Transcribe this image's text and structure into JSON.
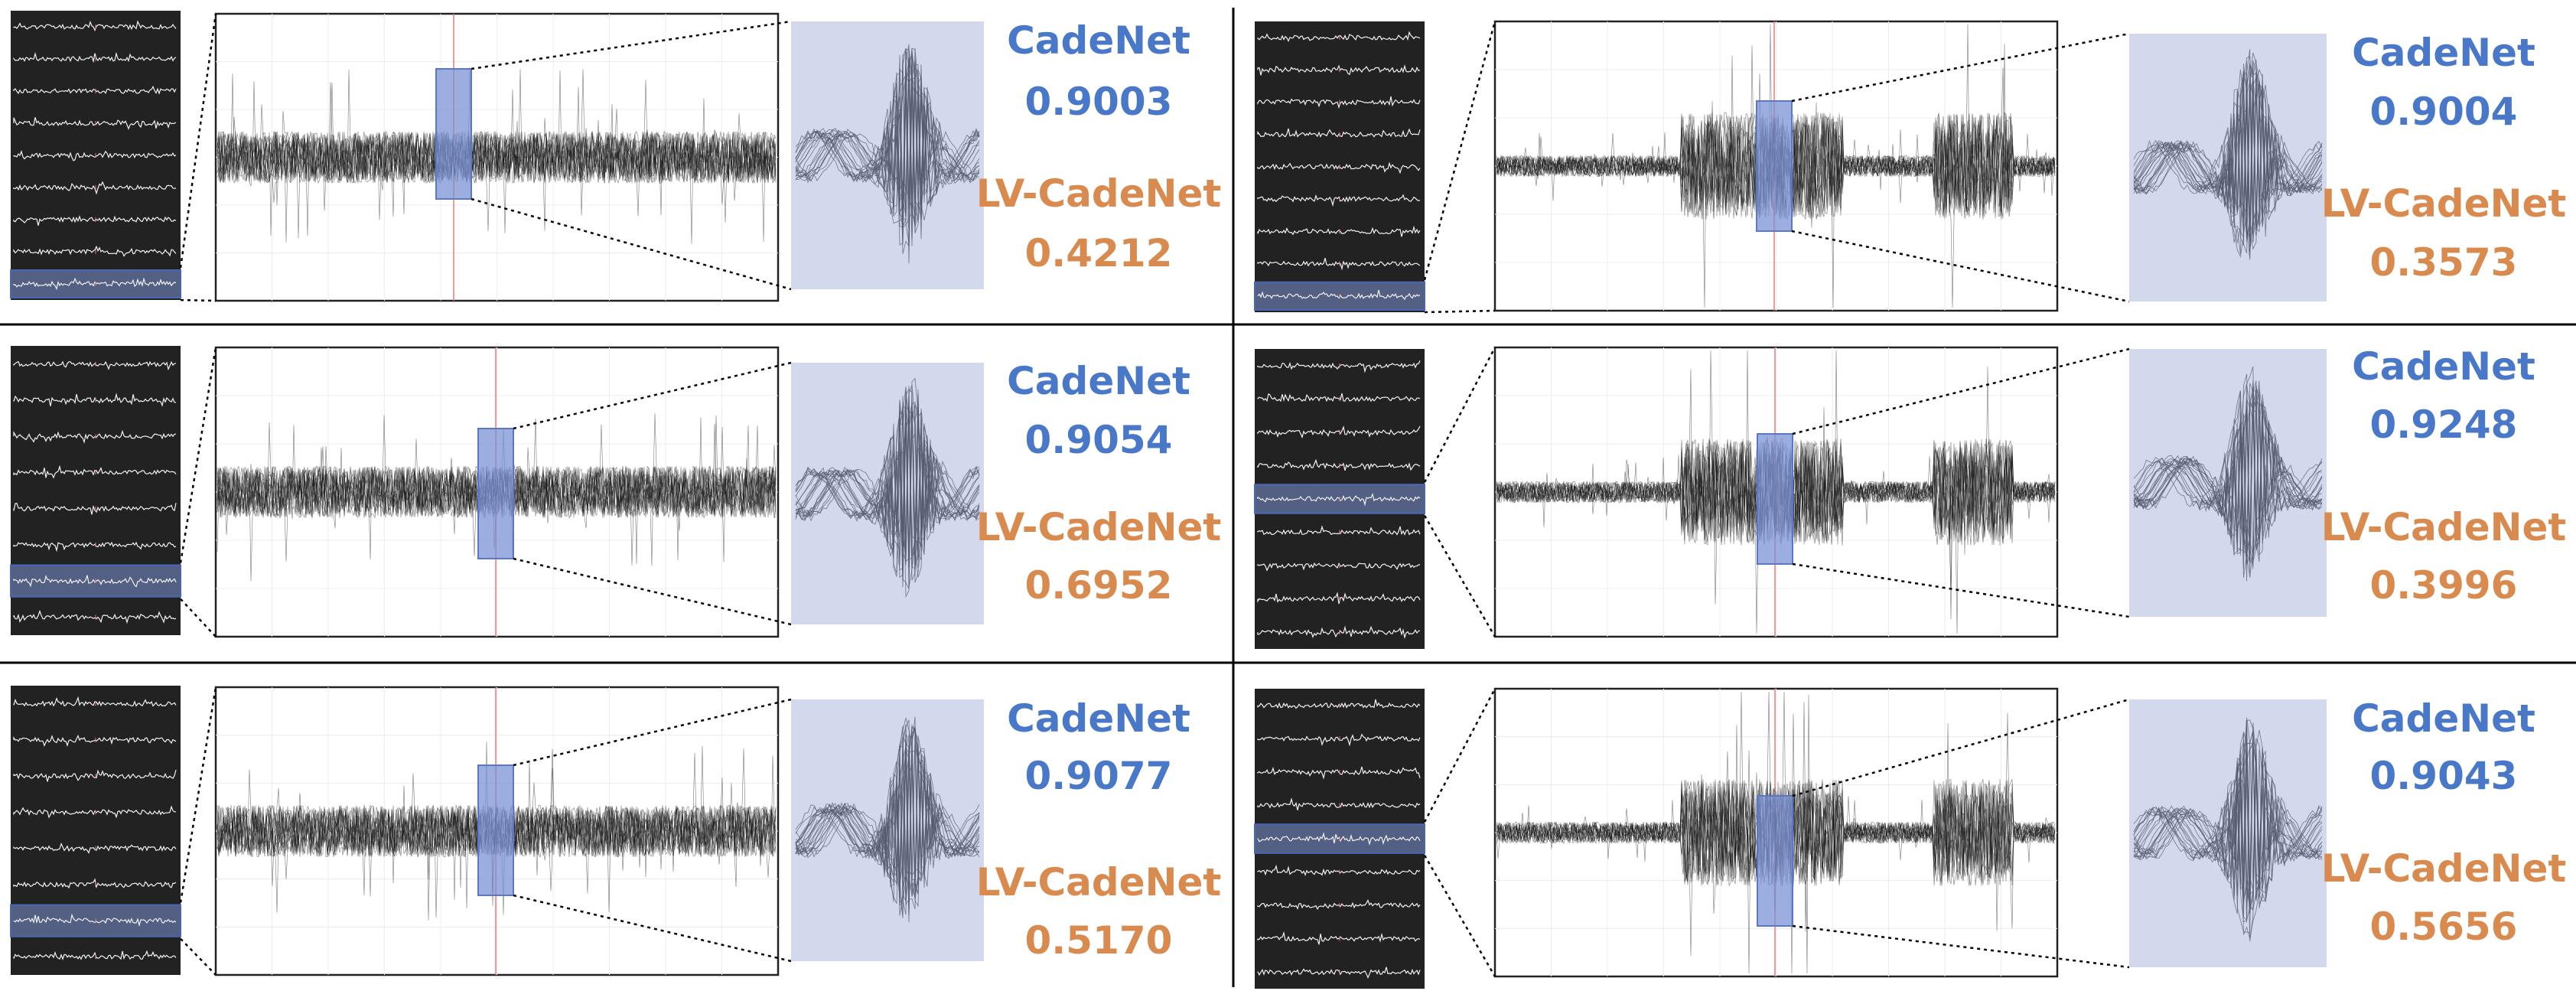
{
  "colors": {
    "cadenet": "#4a78c8",
    "lv_cadenet": "#d98a4f",
    "background": "#ffffff",
    "thumb_bg": "#222222",
    "highlight": "#7b93d4",
    "zoom_bg": "#d3d9ec",
    "trace": "#111111",
    "center_line": "#e87a7a"
  },
  "panels": [
    {
      "id": "panel-1",
      "cadenet_label": "CadeNet",
      "cadenet_score": "0.9003",
      "lv_label": "LV-CadeNet",
      "lv_score": "0.4212",
      "highlighted_channel": 8,
      "thumb_channels": 9
    },
    {
      "id": "panel-2",
      "cadenet_label": "CadeNet",
      "cadenet_score": "0.9004",
      "lv_label": "LV-CadeNet",
      "lv_score": "0.3573",
      "highlighted_channel": 8,
      "thumb_channels": 9
    },
    {
      "id": "panel-3",
      "cadenet_label": "CadeNet",
      "cadenet_score": "0.9054",
      "lv_label": "LV-CadeNet",
      "lv_score": "0.6952",
      "highlighted_channel": 6,
      "thumb_channels": 8
    },
    {
      "id": "panel-4",
      "cadenet_label": "CadeNet",
      "cadenet_score": "0.9248",
      "lv_label": "LV-CadeNet",
      "lv_score": "0.3996",
      "highlighted_channel": 4,
      "thumb_channels": 9
    },
    {
      "id": "panel-5",
      "cadenet_label": "CadeNet",
      "cadenet_score": "0.9077",
      "lv_label": "LV-CadeNet",
      "lv_score": "0.5170",
      "highlighted_channel": 6,
      "thumb_channels": 8
    },
    {
      "id": "panel-6",
      "cadenet_label": "CadeNet",
      "cadenet_score": "0.9043",
      "lv_label": "LV-CadeNet",
      "lv_score": "0.5656",
      "highlighted_channel": 4,
      "thumb_channels": 9
    }
  ]
}
